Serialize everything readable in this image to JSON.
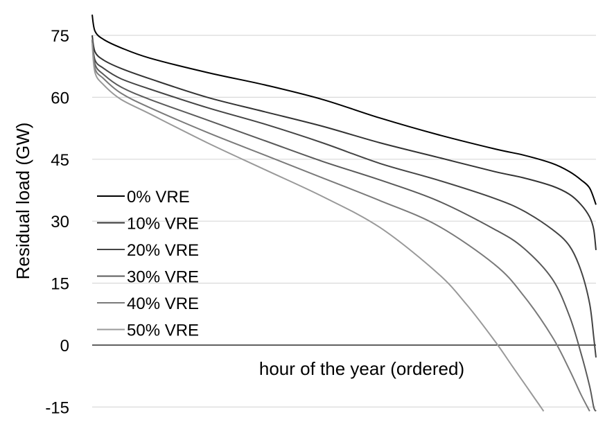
{
  "chart_data": {
    "type": "line",
    "title": "",
    "xlabel": "hour of the year (ordered)",
    "ylabel": "Residual load (GW)",
    "ylim": [
      -15,
      80
    ],
    "yticks": [
      75,
      60,
      45,
      30,
      15,
      0,
      -15
    ],
    "xlim": [
      0,
      8760
    ],
    "grid": "horizontal",
    "legend_position": "left",
    "series": [
      {
        "name": "0% VRE",
        "color": "#000000",
        "x": [
          0,
          50,
          200,
          500,
          1000,
          2000,
          3000,
          4000,
          5000,
          6000,
          7000,
          7500,
          8000,
          8300,
          8500,
          8650,
          8760
        ],
        "y": [
          80,
          76,
          74,
          72,
          69.5,
          66,
          63,
          59.5,
          55,
          51,
          47.5,
          46,
          44,
          42,
          40,
          38,
          34
        ]
      },
      {
        "name": "10% VRE",
        "color": "#333333",
        "x": [
          0,
          50,
          200,
          500,
          1000,
          2000,
          3000,
          4000,
          5000,
          6000,
          7000,
          7500,
          8000,
          8300,
          8500,
          8650,
          8720,
          8760
        ],
        "y": [
          75,
          71,
          69,
          67,
          64.5,
          60,
          56.5,
          53,
          49,
          45.5,
          42,
          40.5,
          38.5,
          36.5,
          34,
          31,
          28,
          23
        ]
      },
      {
        "name": "20% VRE",
        "color": "#444444",
        "x": [
          0,
          50,
          200,
          500,
          1000,
          2000,
          3000,
          4000,
          5000,
          6000,
          7000,
          7500,
          8000,
          8300,
          8500,
          8650,
          8720,
          8760
        ],
        "y": [
          74,
          69,
          67,
          64.5,
          62,
          57.5,
          53.5,
          49,
          44,
          40,
          35.5,
          32.5,
          28,
          24,
          18,
          10,
          2,
          -3
        ]
      },
      {
        "name": "30% VRE",
        "color": "#5a5a5a",
        "x": [
          0,
          50,
          200,
          500,
          1000,
          2000,
          3000,
          4000,
          5000,
          6000,
          7000,
          7500,
          8000,
          8300,
          8500,
          8650,
          8720,
          8760
        ],
        "y": [
          74,
          68,
          65.5,
          62.5,
          59.5,
          54.5,
          49.5,
          44.5,
          40,
          35,
          28,
          23.5,
          16,
          7,
          -2,
          -10,
          -15,
          -16
        ]
      },
      {
        "name": "40% VRE",
        "color": "#7a7a7a",
        "x": [
          0,
          50,
          200,
          500,
          1000,
          2000,
          3000,
          4000,
          5000,
          6000,
          7000,
          7500,
          8000,
          8300,
          8500,
          8650
        ],
        "y": [
          74,
          67,
          64.5,
          61,
          57.5,
          51.5,
          46,
          40.5,
          35,
          29,
          19.5,
          12,
          2,
          -6,
          -12,
          -16
        ]
      },
      {
        "name": "50% VRE",
        "color": "#999999",
        "x": [
          0,
          50,
          200,
          500,
          1000,
          2000,
          3000,
          4000,
          5000,
          6000,
          6500,
          7000,
          7300,
          7500,
          7700,
          7850
        ],
        "y": [
          73,
          66,
          63,
          59.5,
          56,
          49,
          42.5,
          36,
          28.5,
          17.5,
          10,
          1,
          -5,
          -9,
          -13,
          -16
        ]
      }
    ]
  }
}
